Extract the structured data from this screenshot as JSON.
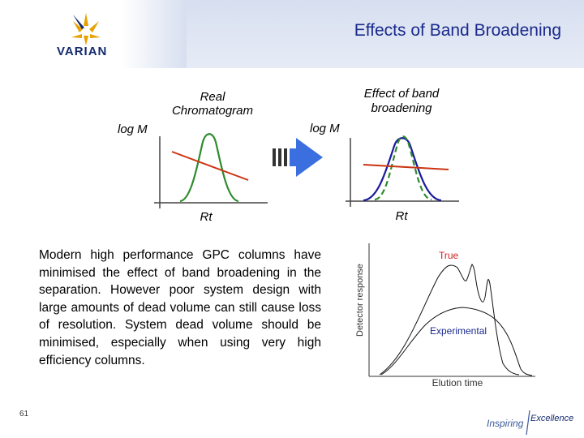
{
  "slide": {
    "title": "Effects of Band Broadening",
    "logo_text": "VARIAN",
    "slide_number": "61",
    "body_text": "Modern high performance GPC columns have minimised the effect of band broadening in the separation. However poor system design with large amounts of dead volume can still cause loss of resolution. System dead volume should be minimised, especially when using very high efficiency columns.",
    "footer_logo_left": "Inspiring",
    "footer_logo_right": "Excellence"
  },
  "diagram": {
    "left_panel": {
      "title_line1": "Real",
      "title_line2": "Chromatogram",
      "y_label": "log M",
      "x_label": "Rt"
    },
    "right_panel": {
      "title_line1": "Effect of band",
      "title_line2": "broadening",
      "y_label": "log M",
      "x_label": "Rt"
    },
    "response_plot": {
      "y_label": "Detector response",
      "x_label": "Elution time",
      "curve_true_label": "True",
      "curve_experimental_label": "Experimental"
    },
    "colors": {
      "green": "#2e8b2e",
      "red": "#cc3311",
      "blue": "#1a1a9c",
      "arrow": "#3b6fe0",
      "title_blue": "#1a2a8c"
    }
  }
}
